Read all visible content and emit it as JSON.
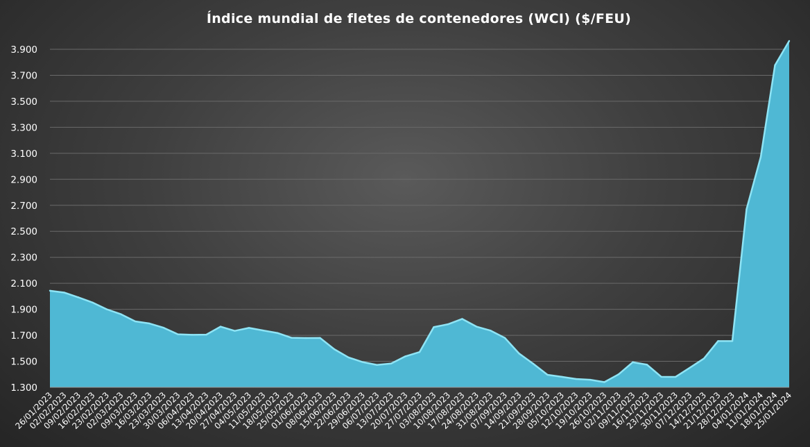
{
  "chart_data": {
    "type": "area",
    "title": "Índice mundial de fletes de contenedores (WCI) ($/FEU)",
    "xlabel": "",
    "ylabel": "",
    "ylim": [
      1300,
      3900
    ],
    "yticks": [
      1300,
      1500,
      1700,
      1900,
      2100,
      2300,
      2500,
      2700,
      2900,
      3100,
      3300,
      3500,
      3700,
      3900
    ],
    "ytick_labels": [
      "1.300",
      "1.500",
      "1.700",
      "1.900",
      "2.100",
      "2.300",
      "2.500",
      "2.700",
      "2.900",
      "3.100",
      "3.300",
      "3.500",
      "3.700",
      "3.900"
    ],
    "grid": true,
    "legend": "none",
    "colors": {
      "fill": "#4fb8d4",
      "line": "#8ee4f5"
    },
    "categories": [
      "26/01/2023",
      "02/02/2023",
      "09/02/2023",
      "16/02/2023",
      "23/02/2023",
      "02/03/2023",
      "09/03/2023",
      "16/03/2023",
      "23/03/2023",
      "30/03/2023",
      "06/04/2023",
      "13/04/2023",
      "20/04/2023",
      "27/04/2023",
      "04/05/2023",
      "11/05/2023",
      "18/05/2023",
      "25/05/2023",
      "01/06/2023",
      "08/06/2023",
      "15/06/2023",
      "22/06/2023",
      "29/06/2023",
      "06/07/2023",
      "13/07/2023",
      "20/07/2023",
      "27/07/2023",
      "03/08/2023",
      "10/08/2023",
      "17/08/2023",
      "24/08/2023",
      "31/08/2023",
      "07/09/2023",
      "14/09/2023",
      "21/09/2023",
      "28/09/2023",
      "05/10/2023",
      "12/10/2023",
      "19/10/2023",
      "26/10/2023",
      "02/11/2023",
      "09/11/2023",
      "16/11/2023",
      "23/11/2023",
      "30/11/2023",
      "07/12/2023",
      "14/12/2023",
      "21/12/2023",
      "28/12/2023",
      "04/01/2024",
      "11/01/2024",
      "18/01/2024",
      "25/01/2024"
    ],
    "values": [
      2043,
      2029,
      1992,
      1952,
      1900,
      1862,
      1807,
      1791,
      1758,
      1708,
      1704,
      1705,
      1767,
      1734,
      1757,
      1737,
      1718,
      1681,
      1679,
      1680,
      1593,
      1530,
      1494,
      1472,
      1483,
      1538,
      1571,
      1763,
      1785,
      1826,
      1767,
      1736,
      1680,
      1560,
      1481,
      1396,
      1381,
      1364,
      1358,
      1340,
      1400,
      1493,
      1474,
      1381,
      1380,
      1450,
      1521,
      1656,
      1656,
      2670,
      3072,
      3777,
      3964
    ]
  }
}
